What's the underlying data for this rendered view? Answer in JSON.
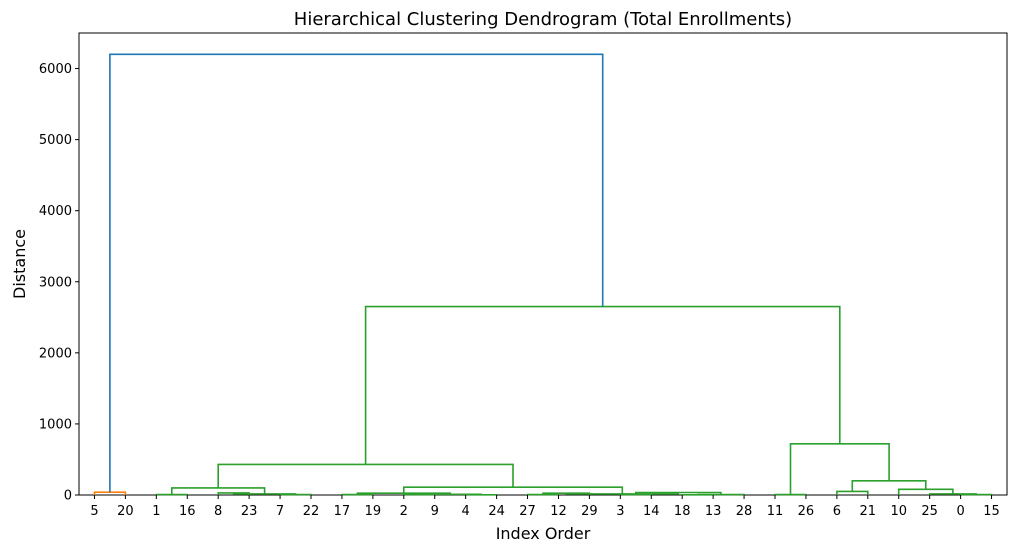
{
  "chart_data": {
    "type": "dendrogram",
    "title": "Hierarchical Clustering Dendrogram (Total Enrollments)",
    "xlabel": "Index Order",
    "ylabel": "Distance",
    "ylim": [
      0,
      6500
    ],
    "yticks": [
      0,
      1000,
      2000,
      3000,
      4000,
      5000,
      6000
    ],
    "leaves": [
      "5",
      "20",
      "1",
      "16",
      "8",
      "23",
      "7",
      "22",
      "17",
      "19",
      "2",
      "9",
      "4",
      "24",
      "27",
      "12",
      "29",
      "3",
      "14",
      "18",
      "13",
      "28",
      "11",
      "26",
      "6",
      "21",
      "10",
      "25",
      "0",
      "15"
    ],
    "colors": {
      "orange": "#ff7f0e",
      "green": "#2ca02c",
      "blue": "#1f77b4"
    },
    "links": [
      {
        "left": 0,
        "right": 1,
        "height": 40,
        "color": "orange"
      },
      {
        "left": 2,
        "right": 3,
        "height": 5,
        "color": "green"
      },
      {
        "left": 4,
        "right": 5,
        "height": 30,
        "color": "green"
      },
      {
        "left": 6,
        "right": 7,
        "height": 5,
        "color": "green"
      },
      {
        "left": "n2",
        "right": "n3",
        "height": 15,
        "color": "green"
      },
      {
        "left": "n1",
        "right": "n4",
        "height": 100,
        "color": "green"
      },
      {
        "left": 8,
        "right": 9,
        "height": 5,
        "color": "green"
      },
      {
        "left": 10,
        "right": 11,
        "height": 5,
        "color": "green"
      },
      {
        "left": 12,
        "right": 13,
        "height": 3,
        "color": "green"
      },
      {
        "left": "n7",
        "right": "n8",
        "height": 10,
        "color": "green"
      },
      {
        "left": "n6",
        "right": "n9",
        "height": 25,
        "color": "green"
      },
      {
        "left": 14,
        "right": 15,
        "height": 5,
        "color": "green"
      },
      {
        "left": 16,
        "right": "n11",
        "height": 25,
        "color": "green"
      },
      {
        "left": 17,
        "right": 18,
        "height": 5,
        "color": "green"
      },
      {
        "left": 19,
        "right": 20,
        "height": 3,
        "color": "green"
      },
      {
        "left": "n14",
        "right": 21,
        "height": 5,
        "color": "green"
      },
      {
        "left": "n13",
        "right": "n15",
        "height": 35,
        "color": "green"
      },
      {
        "left": "n12",
        "right": "n16",
        "height": 15,
        "color": "green"
      },
      {
        "left": "n10",
        "right": "n17",
        "height": 110,
        "color": "green"
      },
      {
        "left": "n5",
        "right": "n18",
        "height": 430,
        "color": "green"
      },
      {
        "left": 22,
        "right": 23,
        "height": 5,
        "color": "green"
      },
      {
        "left": 24,
        "right": 25,
        "height": 50,
        "color": "green"
      },
      {
        "left": 28,
        "right": 29,
        "height": 5,
        "color": "green"
      },
      {
        "left": 27,
        "right": "n22",
        "height": 15,
        "color": "green"
      },
      {
        "left": 26,
        "right": "n23",
        "height": 80,
        "color": "green"
      },
      {
        "left": "n21",
        "right": "n24",
        "height": 200,
        "color": "green"
      },
      {
        "left": "n20",
        "right": "n25",
        "height": 720,
        "color": "green"
      },
      {
        "left": "n19",
        "right": "n26",
        "height": 2650,
        "color": "green"
      },
      {
        "left": "n0",
        "right": "n27",
        "height": 6200,
        "color": "blue"
      }
    ]
  }
}
